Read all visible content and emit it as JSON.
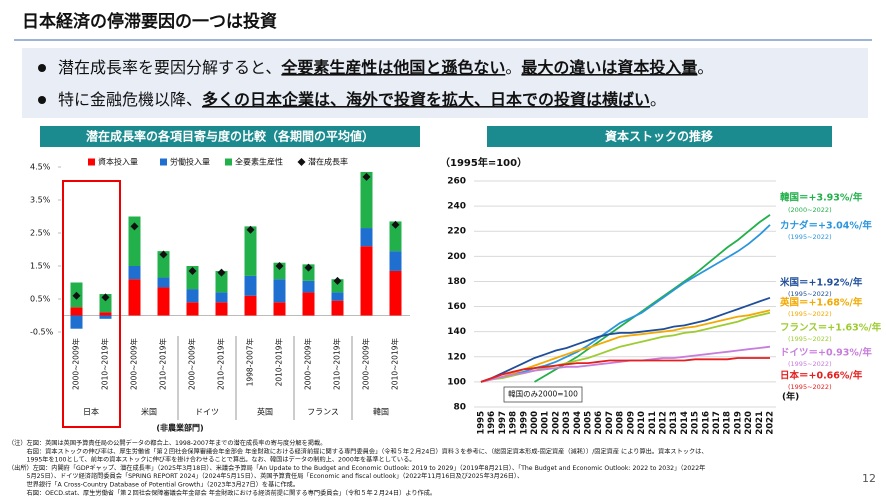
{
  "title": "日本経済の停滞要因の一つは投資",
  "bullets": [
    [
      {
        "text": "潜在成長率を要因分解すると、",
        "strong": false
      },
      {
        "text": "全要素生産性は他国と遜色ない",
        "strong": true
      },
      {
        "text": "。",
        "strong": false
      },
      {
        "text": "最大の違いは資本投入量",
        "strong": true
      },
      {
        "text": "。",
        "strong": false
      }
    ],
    [
      {
        "text": "特に金融危機以降、",
        "strong": false
      },
      {
        "text": "多くの日本企業は、海外で投資を拡大、日本での投資は横ばい",
        "strong": true
      },
      {
        "text": "。",
        "strong": false
      }
    ]
  ],
  "chart_data": [
    {
      "type": "bar",
      "stacked": true,
      "title": "潜在成長率の各項目寄与度の比較（各期間の平均値）",
      "groups": [
        {
          "name": "日本",
          "categories": [
            "2000~2009年",
            "2010~2019年"
          ]
        },
        {
          "name": "米国",
          "categories": [
            "2000~2009年",
            "2010~2019年"
          ]
        },
        {
          "name": "ドイツ",
          "categories": [
            "2000~2009年",
            "2010~2019年"
          ]
        },
        {
          "name": "英国",
          "categories": [
            "1998-2007年",
            "2010-2019年"
          ]
        },
        {
          "name": "フランス",
          "categories": [
            "2000~2009年",
            "2010~2019年"
          ]
        },
        {
          "name": "韓国",
          "categories": [
            "2000~2009年",
            "2010~2019年"
          ]
        }
      ],
      "annotation": "(非農業部門)",
      "ylim": [
        -0.5,
        4.5
      ],
      "yticks": [
        {
          "value": -0.5,
          "label": "-0.5%"
        },
        {
          "value": 0.5,
          "label": "0.5%"
        },
        {
          "value": 1.5,
          "label": "1.5%"
        },
        {
          "value": 2.5,
          "label": "2.5%"
        },
        {
          "value": 3.5,
          "label": "3.5%"
        },
        {
          "value": 4.5,
          "label": "4.5%"
        }
      ],
      "series": [
        {
          "name": "資本投入量",
          "type": "bar",
          "color": "#ff0000",
          "values": [
            0.25,
            0.1,
            1.1,
            0.85,
            0.4,
            0.4,
            0.6,
            0.4,
            0.7,
            0.45,
            2.1,
            1.35
          ]
        },
        {
          "name": "労働投入量",
          "type": "bar",
          "color": "#1f6fd0",
          "values": [
            -0.4,
            -0.1,
            0.4,
            0.3,
            0.4,
            0.3,
            0.6,
            0.7,
            0.35,
            0.25,
            0.55,
            0.6
          ]
        },
        {
          "name": "全要素生産性",
          "type": "bar",
          "color": "#22b04b",
          "values": [
            0.75,
            0.55,
            1.5,
            0.8,
            0.7,
            0.65,
            1.5,
            0.5,
            0.5,
            0.4,
            1.7,
            0.9
          ]
        },
        {
          "name": "潜在成長率",
          "type": "marker",
          "color": "#111111",
          "values": [
            0.6,
            0.55,
            2.7,
            1.85,
            1.35,
            1.3,
            2.6,
            1.5,
            1.45,
            1.05,
            4.2,
            2.75
          ]
        }
      ]
    },
    {
      "type": "line",
      "title": "資本ストックの推移",
      "y_label": "（1995年=100）",
      "x_label": "(年)",
      "annotation": "韓国のみ2000=100",
      "x": [
        1995,
        1996,
        1997,
        1998,
        1999,
        2000,
        2001,
        2002,
        2003,
        2004,
        2005,
        2006,
        2007,
        2008,
        2009,
        2010,
        2011,
        2012,
        2013,
        2014,
        2015,
        2016,
        2017,
        2018,
        2019,
        2020,
        2021,
        2022
      ],
      "ylim": [
        80,
        260
      ],
      "yticks": [
        80,
        100,
        120,
        140,
        160,
        180,
        200,
        220,
        240,
        260
      ],
      "grid": true,
      "series": [
        {
          "name": "韓国＝+3.93%/年",
          "period": "(2000~2022)",
          "color": "#22b04b",
          "values": [
            null,
            null,
            null,
            null,
            null,
            100,
            105,
            110,
            115,
            120,
            126,
            132,
            138,
            144,
            150,
            156,
            162,
            168,
            174,
            180,
            186,
            193,
            200,
            207,
            213,
            220,
            227,
            233
          ]
        },
        {
          "name": "カナダ＝+3.04%/年",
          "period": "(1995~2022)",
          "color": "#2b95dd",
          "values": [
            100,
            102,
            104,
            106,
            108,
            111,
            113,
            116,
            120,
            124,
            129,
            135,
            141,
            147,
            151,
            155,
            161,
            167,
            173,
            179,
            184,
            189,
            194,
            199,
            204,
            210,
            217,
            225
          ]
        },
        {
          "name": "米国＝+1.92%/年",
          "period": "(1995~2022)",
          "color": "#1f4e9a",
          "values": [
            100,
            103,
            107,
            111,
            115,
            119,
            122,
            125,
            127,
            130,
            133,
            136,
            138,
            139,
            139,
            140,
            141,
            142,
            144,
            145,
            147,
            149,
            152,
            155,
            158,
            161,
            164,
            167
          ]
        },
        {
          "name": "英国＝+1.68%/年",
          "period": "(1995~2022)",
          "color": "#f2a900",
          "values": [
            100,
            102,
            104,
            107,
            110,
            113,
            116,
            119,
            122,
            125,
            127,
            130,
            133,
            136,
            137,
            138,
            139,
            140,
            141,
            143,
            144,
            146,
            148,
            150,
            152,
            153,
            155,
            157
          ]
        },
        {
          "name": "フランス＝+1.63%/年",
          "period": "(1995~2022)",
          "color": "#9ccc2f",
          "values": [
            100,
            102,
            103,
            105,
            107,
            109,
            111,
            113,
            115,
            117,
            119,
            122,
            125,
            128,
            130,
            132,
            134,
            136,
            137,
            139,
            140,
            142,
            144,
            146,
            148,
            151,
            153,
            155
          ]
        },
        {
          "name": "ドイツ＝+0.93%/年",
          "period": "(1995~2022)",
          "color": "#c77ddb",
          "values": [
            100,
            102,
            104,
            106,
            107,
            109,
            110,
            111,
            112,
            112,
            113,
            114,
            115,
            116,
            117,
            117,
            118,
            119,
            119,
            120,
            121,
            122,
            123,
            124,
            125,
            126,
            127,
            128
          ]
        },
        {
          "name": "日本＝+0.66%/年",
          "period": "(1995~2022)",
          "color": "#e61e1e",
          "values": [
            100,
            103,
            106,
            108,
            110,
            111,
            112,
            113,
            114,
            115,
            115,
            116,
            117,
            117,
            117,
            117,
            117,
            117,
            117,
            117,
            118,
            118,
            118,
            118,
            119,
            119,
            119,
            119
          ]
        }
      ]
    }
  ],
  "notes": [
    "（注）左図：英国は英国予算責任局の公開データの都合上、1998-2007年までの潜在成長率の寄与度分解を掲載。",
    "　　　右図：資本ストックの伸び率は、厚生労働省「第２回社会保障審議会年金部会 年金財政における経済前提に関する専門委員会」（令和５年２月24日）資料３を参考に、（総固定資本形成-固定資産（減耗））/固定資産 により算出。資本ストックは、",
    "　　　1995年を100として、前年の資本ストックに伸び率を掛け合わせることで算出。なお、韓国はデータの制約上、2000年を基準としている。",
    "（出所）左図：内閣府「GDPギャップ、潜在成長率」（2025年3月18日）、米議会予算局「An Update to the Budget and Economic Outlook: 2019 to 2029」（2019年8月21日）、「The Budget and Economic Outlook: 2022 to 2032」（2022年",
    "　　　5月25日）、ドイツ経済諮問委員会「SPRING REPORT 2024」（2024年5月15日）、英国予算責任局「Economic and fiscal outlook」（2022年11月16日及び2025年3月26日）、",
    "　　　世界銀行「A Cross-Country Database of Potential Growth」（2023年3月27日）を基に作成。",
    "　　　右図：OECD.stat、厚生労働省「第２回社会保障審議会年金部会 年金財政における経済前提に関する専門委員会」（令和５年２月24日）より作成。"
  ],
  "page": "12"
}
